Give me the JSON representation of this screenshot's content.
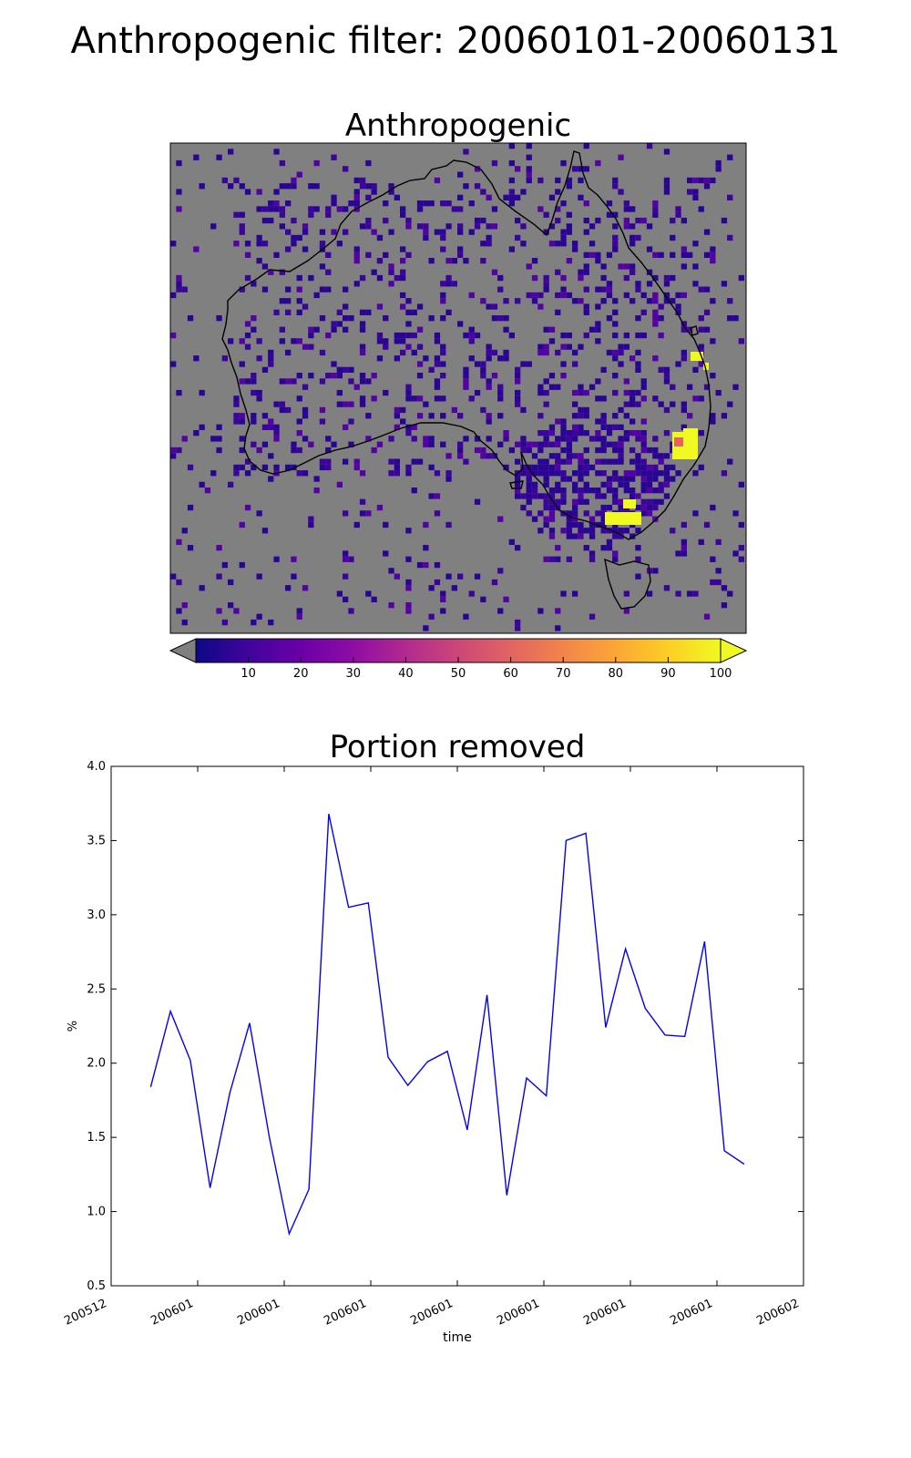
{
  "figure": {
    "suptitle": "Anthropogenic filter: 20060101-20060131"
  },
  "map": {
    "title": "Anthropogenic",
    "background_color": "#808080",
    "colormap": "plasma",
    "colorbar": {
      "ticks": [
        10,
        20,
        30,
        40,
        50,
        60,
        70,
        80,
        90,
        100
      ],
      "min": 0,
      "max": 100,
      "under_color": "#808080",
      "over_color": "#f0f921"
    }
  },
  "chart_data": {
    "type": "line",
    "title": "Portion removed",
    "xlabel": "time",
    "ylabel": "%",
    "ylim": [
      0.5,
      4.0
    ],
    "yticks": [
      "0.5",
      "1.0",
      "1.5",
      "2.0",
      "2.5",
      "3.0",
      "3.5",
      "4.0"
    ],
    "xtick_labels": [
      "200512",
      "200601",
      "200601",
      "200601",
      "200601",
      "200601",
      "200601",
      "200601",
      "200602"
    ],
    "x": [
      1,
      2,
      3,
      4,
      5,
      6,
      7,
      8,
      9,
      10,
      11,
      12,
      13,
      14,
      15,
      16,
      17,
      18,
      19,
      20,
      21,
      22,
      23,
      24,
      25,
      26,
      27,
      28,
      29,
      30,
      31
    ],
    "xlim": [
      -1,
      34
    ],
    "series": [
      {
        "color": "#0000ff",
        "values": [
          1.84,
          2.35,
          2.02,
          1.16,
          1.8,
          2.27,
          1.5,
          0.85,
          1.15,
          3.68,
          3.05,
          3.08,
          2.04,
          1.85,
          2.01,
          2.08,
          1.55,
          2.46,
          1.11,
          1.9,
          1.78,
          3.5,
          3.55,
          2.24,
          2.77,
          2.37,
          2.19,
          2.18,
          2.82,
          1.41,
          1.32
        ]
      }
    ]
  }
}
